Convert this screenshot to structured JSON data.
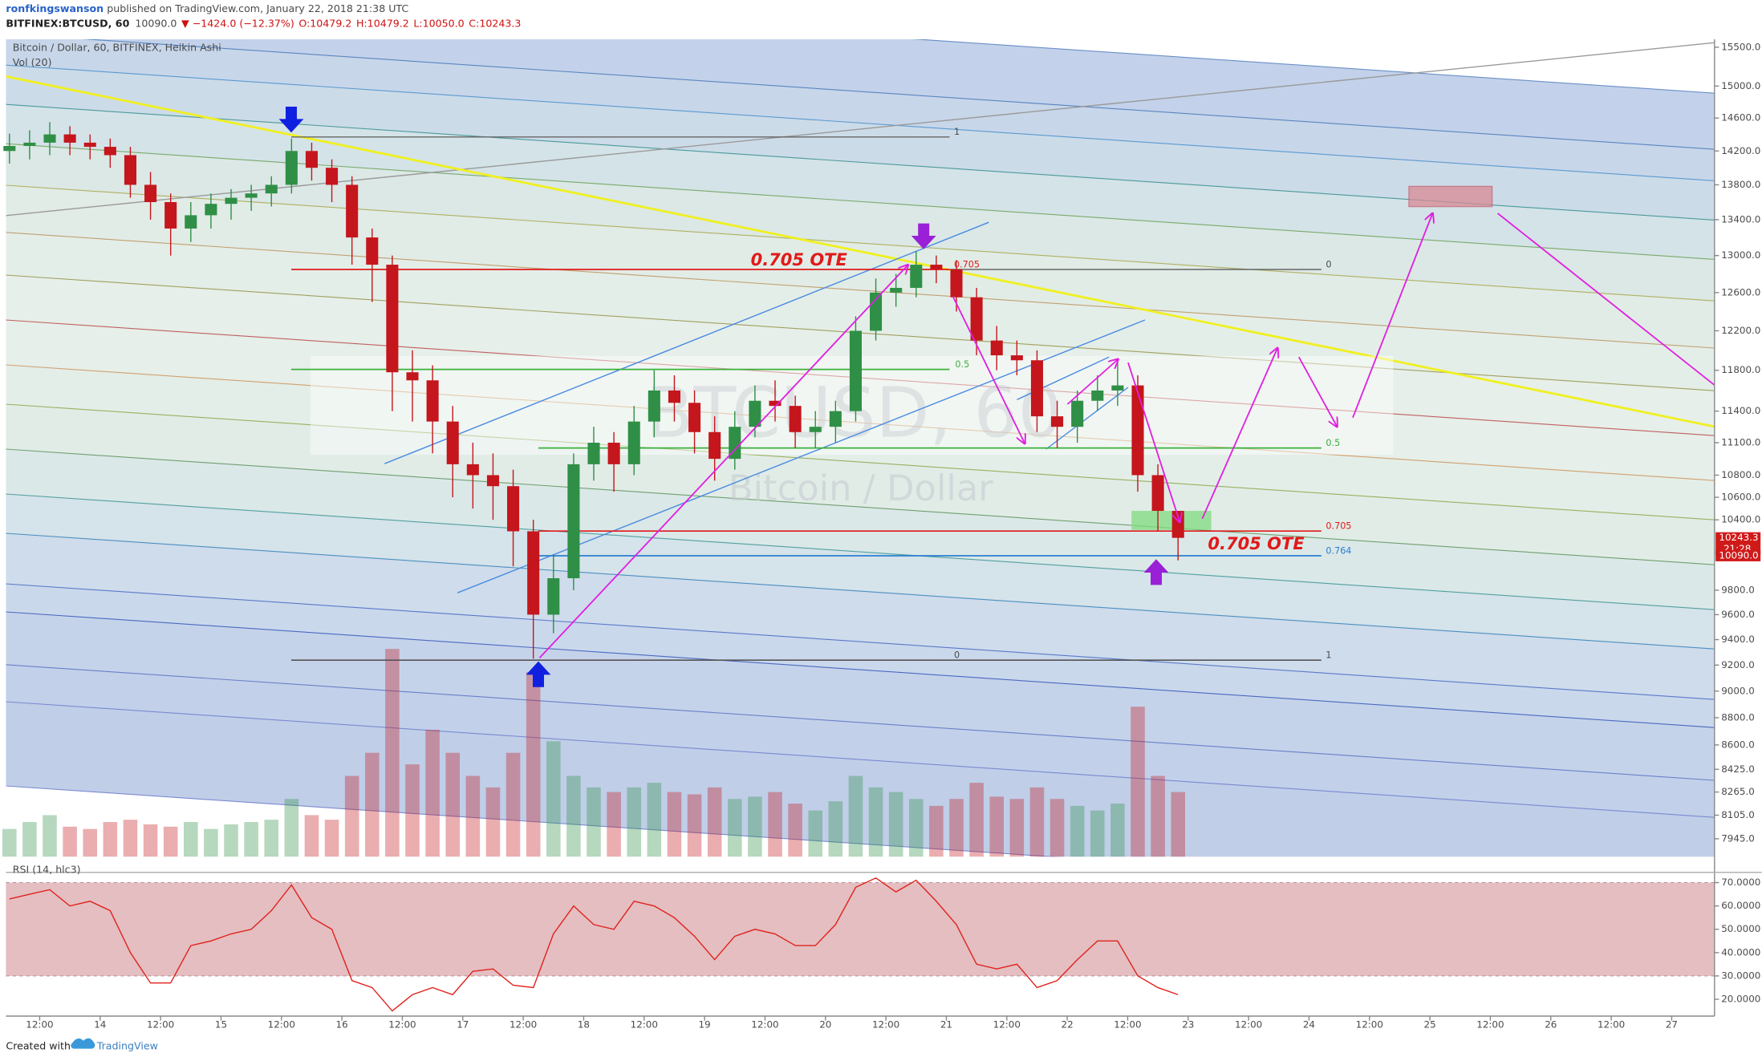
{
  "header": {
    "author": "ronfkingswanson",
    "published": "published on TradingView.com, January 22, 2018 21:38 UTC",
    "symbol": "BITFINEX:BTCUSD, 60",
    "price": "10090.0",
    "change": "▼ −1424.0 (−12.37%)",
    "open": "O:10479.2",
    "high": "H:10479.2",
    "low": "L:10050.0",
    "close": "C:10243.3"
  },
  "footer": {
    "created": "Created with",
    "brand": "TradingView"
  },
  "chart_data": {
    "type": "candlestick",
    "title": "Bitcoin / Dollar, 60, BITFINEX, Heikin Ashi",
    "volume_label": "Vol (20)",
    "watermark": [
      "BTCUSD, 60",
      "Bitcoin / Dollar"
    ],
    "annotations": [
      "0.705 OTE",
      "0.705",
      "0",
      "1",
      "0.5",
      "0",
      "1",
      "0.5",
      "0.705",
      "0.764",
      "0.705 OTE"
    ],
    "up_color": "#2f8f46",
    "down_color": "#c4161c",
    "log": true,
    "x": [
      -18,
      -14,
      -10,
      -6,
      -2,
      2,
      6,
      10,
      14,
      18,
      22,
      26,
      30,
      34,
      38,
      42,
      46,
      50,
      54,
      58,
      62,
      66,
      70,
      74,
      78,
      82,
      86,
      90,
      94,
      98,
      102,
      106,
      110,
      114,
      118,
      122,
      126,
      130,
      134,
      138,
      142,
      146,
      150,
      154,
      158,
      162,
      166,
      170,
      174,
      178,
      182,
      186,
      190,
      194,
      198,
      202,
      206,
      210,
      214
    ],
    "open": [
      14200,
      14260,
      14300,
      14400,
      14300,
      14250,
      14150,
      13800,
      13600,
      13300,
      13450,
      13580,
      13650,
      13700,
      13800,
      14200,
      14000,
      13800,
      13200,
      12900,
      11780,
      11700,
      11300,
      10900,
      10800,
      10700,
      10300,
      9600,
      9900,
      10900,
      11100,
      10900,
      11300,
      11600,
      11480,
      11200,
      10950,
      11250,
      11500,
      11450,
      11200,
      11250,
      11400,
      12200,
      12600,
      12650,
      12900,
      12850,
      12550,
      12100,
      11950,
      11900,
      11350,
      11250,
      11500,
      11600,
      11650,
      10800,
      10479.2
    ],
    "high": [
      14410,
      14450,
      14550,
      14500,
      14400,
      14350,
      14250,
      13950,
      13700,
      13600,
      13700,
      13750,
      13800,
      13900,
      14350,
      14300,
      14100,
      13900,
      13300,
      13000,
      12000,
      11850,
      11450,
      11100,
      11000,
      10850,
      10400,
      10100,
      11000,
      11250,
      11200,
      11450,
      11800,
      11750,
      11600,
      11350,
      11400,
      11650,
      11700,
      11550,
      11400,
      11500,
      12350,
      12750,
      12800,
      13050,
      13000,
      12950,
      12650,
      12250,
      12100,
      12000,
      11500,
      11600,
      11750,
      11900,
      11750,
      10900,
      10479.2
    ],
    "low": [
      14050,
      14100,
      14150,
      14150,
      14100,
      14000,
      13650,
      13400,
      13000,
      13150,
      13300,
      13400,
      13500,
      13550,
      13700,
      13850,
      13600,
      12900,
      12500,
      11400,
      11300,
      11000,
      10600,
      10500,
      10400,
      10000,
      9250,
      9450,
      9800,
      10750,
      10650,
      10800,
      11150,
      11300,
      11000,
      10750,
      10850,
      11150,
      11300,
      11050,
      11050,
      11100,
      11300,
      12100,
      12450,
      12550,
      12700,
      12400,
      11950,
      11800,
      11750,
      11200,
      11050,
      11100,
      11400,
      11450,
      10650,
      10300,
      10050
    ],
    "close": [
      14260,
      14300,
      14400,
      14300,
      14250,
      14150,
      13800,
      13600,
      13300,
      13450,
      13580,
      13650,
      13700,
      13800,
      14200,
      14000,
      13800,
      13200,
      12900,
      11780,
      11700,
      11300,
      10900,
      10800,
      10700,
      10300,
      9600,
      9900,
      10900,
      11100,
      10900,
      11300,
      11600,
      11480,
      11200,
      10950,
      11250,
      11500,
      11450,
      11200,
      11250,
      11400,
      12200,
      12600,
      12650,
      12900,
      12850,
      12550,
      12100,
      11950,
      11900,
      11350,
      11250,
      11500,
      11600,
      11650,
      10800,
      10479.2,
      10243.3
    ],
    "volume": [
      1200,
      1500,
      1800,
      1300,
      1200,
      1500,
      1600,
      1400,
      1300,
      1500,
      1200,
      1400,
      1500,
      1600,
      2500,
      1800,
      1600,
      3500,
      4500,
      9000,
      4000,
      5500,
      4500,
      3500,
      3000,
      4500,
      8000,
      5000,
      3500,
      3000,
      2800,
      3000,
      3200,
      2800,
      2700,
      3000,
      2500,
      2600,
      2800,
      2300,
      2000,
      2400,
      3500,
      3000,
      2800,
      2500,
      2200,
      2500,
      3200,
      2600,
      2500,
      3000,
      2500,
      2200,
      2000,
      2300,
      6500,
      3500,
      2800
    ],
    "xlim": [
      -18.7,
      320.5
    ],
    "xticks": [
      {
        "value": -12,
        "label": "12:00"
      },
      {
        "value": 0,
        "label": "14"
      },
      {
        "value": 12,
        "label": "12:00"
      },
      {
        "value": 24,
        "label": "15"
      },
      {
        "value": 36,
        "label": "12:00"
      },
      {
        "value": 48,
        "label": "16"
      },
      {
        "value": 60,
        "label": "12:00"
      },
      {
        "value": 72,
        "label": "17"
      },
      {
        "value": 84,
        "label": "12:00"
      },
      {
        "value": 96,
        "label": "18"
      },
      {
        "value": 108,
        "label": "12:00"
      },
      {
        "value": 120,
        "label": "19"
      },
      {
        "value": 132,
        "label": "12:00"
      },
      {
        "value": 144,
        "label": "20"
      },
      {
        "value": 156,
        "label": "12:00"
      },
      {
        "value": 168,
        "label": "21"
      },
      {
        "value": 180,
        "label": "12:00"
      },
      {
        "value": 192,
        "label": "22"
      },
      {
        "value": 204,
        "label": "12:00"
      },
      {
        "value": 216,
        "label": "23"
      },
      {
        "value": 228,
        "label": "12:00"
      },
      {
        "value": 240,
        "label": "24"
      },
      {
        "value": 252,
        "label": "12:00"
      },
      {
        "value": 264,
        "label": "25"
      },
      {
        "value": 276,
        "label": "12:00"
      },
      {
        "value": 288,
        "label": "26"
      },
      {
        "value": 300,
        "label": "12:00"
      },
      {
        "value": 312,
        "label": "27"
      }
    ],
    "ylim": [
      7826,
      15604
    ],
    "yticks": [
      {
        "value": 15500,
        "label": "15500.0"
      },
      {
        "value": 15000,
        "label": "15000.0"
      },
      {
        "value": 14600,
        "label": "14600.0"
      },
      {
        "value": 14200,
        "label": "14200.0"
      },
      {
        "value": 13800,
        "label": "13800.0"
      },
      {
        "value": 13400,
        "label": "13400.0"
      },
      {
        "value": 13000,
        "label": "13000.0"
      },
      {
        "value": 12600,
        "label": "12600.0"
      },
      {
        "value": 12200,
        "label": "12200.0"
      },
      {
        "value": 11800,
        "label": "11800.0"
      },
      {
        "value": 11400,
        "label": "11400.0"
      },
      {
        "value": 11100,
        "label": "11100.0"
      },
      {
        "value": 10800,
        "label": "10800.0"
      },
      {
        "value": 10600,
        "label": "10600.0"
      },
      {
        "value": 10400,
        "label": "10400.0"
      },
      {
        "value": 9800,
        "label": "9800.0"
      },
      {
        "value": 9600,
        "label": "9600.0"
      },
      {
        "value": 9400,
        "label": "9400.0"
      },
      {
        "value": 9200,
        "label": "9200.0"
      },
      {
        "value": 9000,
        "label": "9000.0"
      },
      {
        "value": 8800,
        "label": "8800.0"
      },
      {
        "value": 8600,
        "label": "8600.0"
      },
      {
        "value": 8425,
        "label": "8425.0"
      },
      {
        "value": 8265,
        "label": "8265.0"
      },
      {
        "value": 8105,
        "label": "8105.0"
      },
      {
        "value": 7945,
        "label": "7945.0"
      }
    ],
    "tags": [
      {
        "value": 10243.3,
        "label": "10243.3",
        "time": "21:28"
      },
      {
        "value": 10090,
        "label": "10090.0"
      }
    ],
    "rsi": {
      "title": "RSI (14, hlc3)",
      "color": "#e0221c",
      "band": [
        30,
        70
      ],
      "band_color": "#d9a3a6",
      "values": [
        63,
        65,
        67,
        60,
        62,
        58,
        40,
        27,
        27,
        43,
        45,
        48,
        50,
        58,
        69,
        55,
        50,
        28,
        25,
        15,
        22,
        25,
        22,
        32,
        33,
        26,
        25,
        48,
        60,
        52,
        50,
        62,
        60,
        55,
        47,
        37,
        47,
        50,
        48,
        43,
        43,
        52,
        68,
        72,
        66,
        71,
        62,
        52,
        35,
        33,
        35,
        25,
        28,
        37,
        45,
        45,
        30,
        25,
        22
      ],
      "ylim": [
        13.75,
        71.5
      ],
      "yticks": [
        {
          "value": 70,
          "label": "70.0000"
        },
        {
          "value": 60,
          "label": "60.0000"
        },
        {
          "value": 50,
          "label": "50.0000"
        },
        {
          "value": 40,
          "label": "40.0000"
        },
        {
          "value": 30,
          "label": "30.0000"
        },
        {
          "value": 20,
          "label": "20.0000"
        }
      ]
    }
  }
}
